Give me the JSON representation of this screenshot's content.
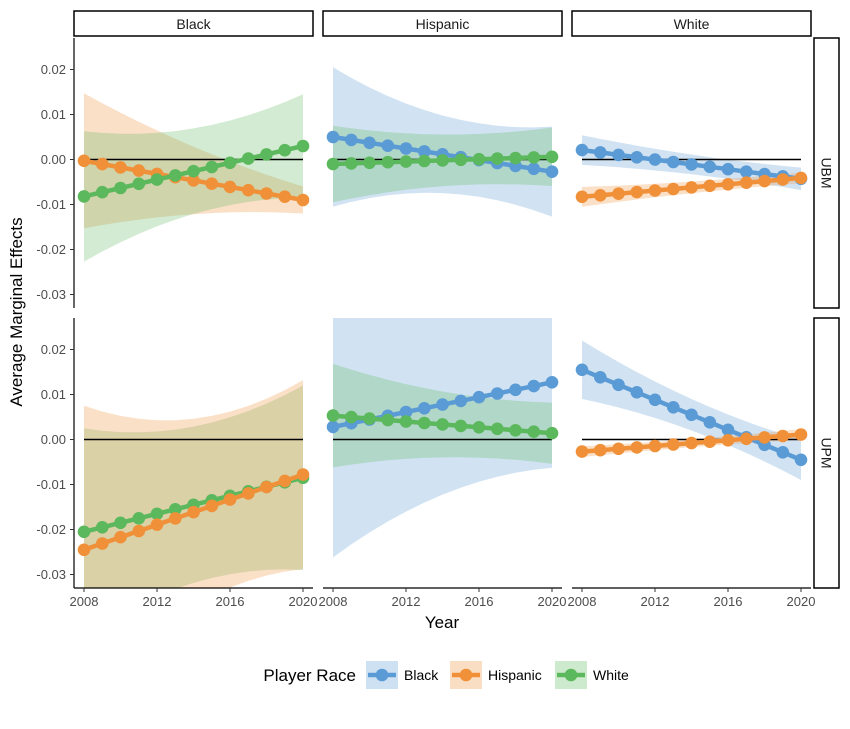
{
  "chart_data": {
    "type": "line",
    "xlabel": "Year",
    "ylabel": "Average Marginal Effects",
    "column_facets": [
      "Black",
      "Hispanic",
      "White"
    ],
    "row_facets": [
      "UBM",
      "UPM"
    ],
    "x_ticks": [
      2008,
      2012,
      2016,
      2020
    ],
    "y_ticks": [
      -0.03,
      -0.02,
      -0.01,
      0.0,
      0.01,
      0.02
    ],
    "y_tick_labels": [
      "-0.03",
      "-0.02",
      "-0.01",
      "0.00",
      "0.01",
      "0.02"
    ],
    "xlim": [
      2008,
      2020
    ],
    "ylim": [
      -0.033,
      0.027
    ],
    "reference_line_y": 0,
    "legend": {
      "title": "Player Race",
      "position": "bottom",
      "entries": [
        {
          "name": "Black",
          "color": "#5b9bd5"
        },
        {
          "name": "Hispanic",
          "color": "#f0913a"
        },
        {
          "name": "White",
          "color": "#5cb85c"
        }
      ]
    },
    "panels": [
      {
        "column": "Black",
        "row": "UBM",
        "series": [
          {
            "name": "Hispanic",
            "start": -0.0003,
            "end": -0.009,
            "band_start": 0.015,
            "band_mid": 0.006,
            "band_end": 0.003
          },
          {
            "name": "White",
            "start": -0.0082,
            "end": 0.003,
            "band_start": 0.0145,
            "band_mid": 0.006,
            "band_end": 0.0115
          }
        ]
      },
      {
        "column": "Hispanic",
        "row": "UBM",
        "series": [
          {
            "name": "Black",
            "start": 0.005,
            "end": -0.0027,
            "band_start": 0.0155,
            "band_mid": 0.0045,
            "band_end": 0.01
          },
          {
            "name": "White",
            "start": -0.001,
            "end": 0.0006,
            "band_start": 0.0085,
            "band_mid": 0.004,
            "band_end": 0.0065
          }
        ]
      },
      {
        "column": "White",
        "row": "UBM",
        "series": [
          {
            "name": "Black",
            "start": 0.0021,
            "end": -0.0043,
            "band_start": 0.0033,
            "band_mid": 0.0015,
            "band_end": 0.0025
          },
          {
            "name": "Hispanic",
            "start": -0.0083,
            "end": -0.0041,
            "band_start": 0.0022,
            "band_mid": 0.0009,
            "band_end": 0.0012
          }
        ]
      },
      {
        "column": "Black",
        "row": "UPM",
        "series": [
          {
            "name": "White",
            "start": -0.0205,
            "end": -0.0085,
            "band_start": 0.023,
            "band_mid": 0.013,
            "band_end": 0.0205
          },
          {
            "name": "Hispanic",
            "start": -0.0245,
            "end": -0.0078,
            "band_start": 0.032,
            "band_mid": 0.015,
            "band_end": 0.021
          }
        ]
      },
      {
        "column": "Hispanic",
        "row": "UPM",
        "series": [
          {
            "name": "Black",
            "start": 0.0028,
            "end": 0.0127,
            "band_start": 0.029,
            "band_mid": 0.016,
            "band_end": 0.019
          },
          {
            "name": "White",
            "start": 0.0053,
            "end": 0.0014,
            "band_start": 0.0115,
            "band_mid": 0.0055,
            "band_end": 0.0068
          }
        ]
      },
      {
        "column": "White",
        "row": "UPM",
        "series": [
          {
            "name": "Black",
            "start": 0.0155,
            "end": -0.0045,
            "band_start": 0.0065,
            "band_mid": 0.0015,
            "band_end": 0.0045
          },
          {
            "name": "Hispanic",
            "start": -0.0027,
            "end": 0.0011,
            "band_start": 0.0012,
            "band_mid": 0.0006,
            "band_end": 0.0012
          }
        ]
      }
    ]
  }
}
